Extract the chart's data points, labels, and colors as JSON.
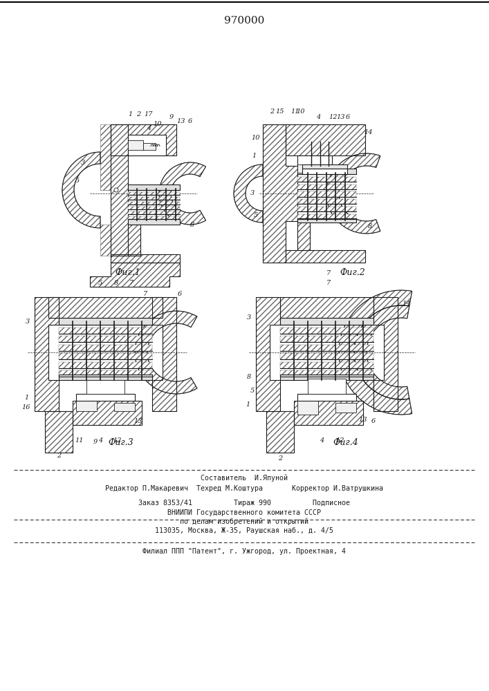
{
  "patent_number": "970000",
  "top_line": "Составитель  И.Япуной",
  "editor_line": "Редактор П.Макаревич  Техред М.Коштура       Корректор И.Ватрушкина",
  "order_line": "Заказ 8353/41          Тираж 990          Подписное",
  "org_line1": "ВНИИПИ Государственного комитета СССР",
  "org_line2": "по делам изобретений и открытий",
  "org_line3": "113035, Москва, Ж-35, Раушская наб., д. 4/5",
  "footer_line": "Филиал ППП \"Патент\", г. Ужгород, ул. Проектная, 4",
  "fig1_label": "Фиг.1",
  "fig2_label": "Фиг.2",
  "fig3_label": "Фиг.3",
  "fig4_label": "Фиг.4",
  "bg_color": "#ffffff",
  "drawing_color": "#1a1a1a"
}
